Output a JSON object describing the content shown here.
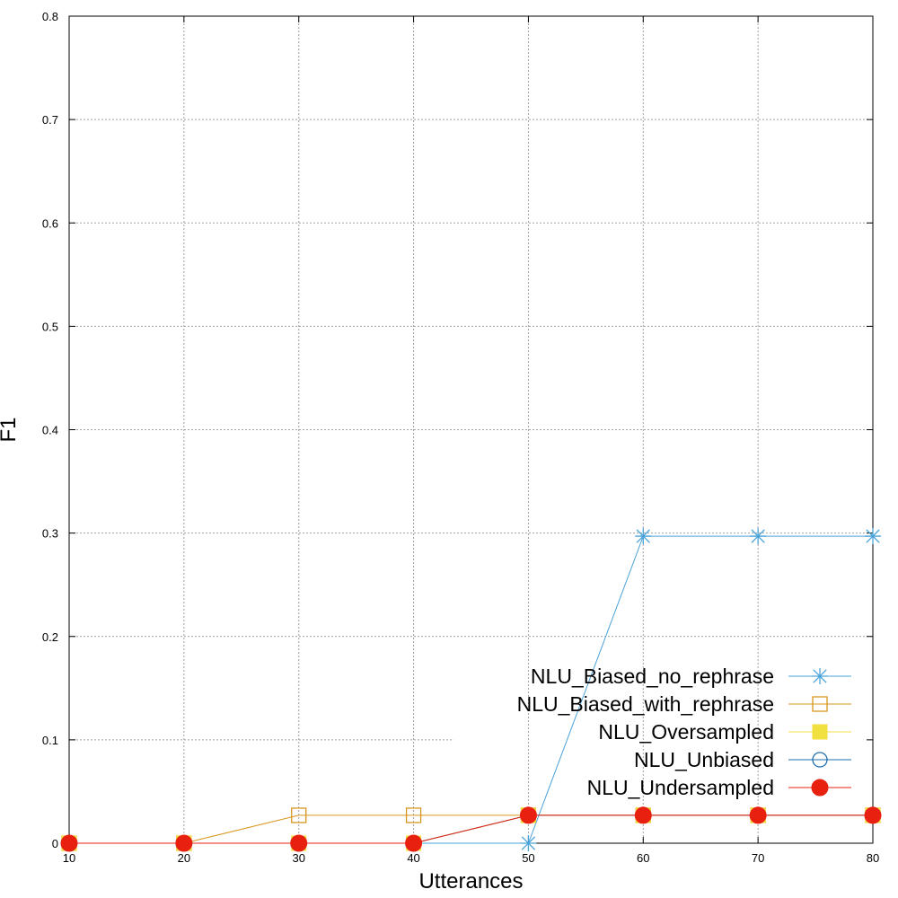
{
  "chart_data": {
    "type": "line",
    "title": "",
    "xlabel": "Utterances",
    "ylabel": "F1",
    "xlim": [
      10,
      80
    ],
    "ylim": [
      0,
      0.8
    ],
    "x": [
      10,
      20,
      30,
      40,
      50,
      60,
      70,
      80
    ],
    "x_ticks": [
      "10",
      "20",
      "30",
      "40",
      "50",
      "60",
      "70",
      "80"
    ],
    "y_ticks": [
      "0",
      "0.1",
      "0.2",
      "0.3",
      "0.4",
      "0.5",
      "0.6",
      "0.7",
      "0.8"
    ],
    "grid": true,
    "legend_position": "bottom-right",
    "series": [
      {
        "name": "NLU_Biased_no_rephrase",
        "color": "#4aa3d8",
        "marker": "star",
        "values": [
          0,
          0,
          0,
          0,
          0,
          0.297,
          0.297,
          0.297
        ]
      },
      {
        "name": "NLU_Biased_with_rephrase",
        "color": "#d8961e",
        "marker": "open-square",
        "values": [
          0,
          0,
          0.027,
          0.027,
          0.027,
          0.027,
          0.027,
          0.027
        ]
      },
      {
        "name": "NLU_Oversampled",
        "color": "#f0e040",
        "marker": "filled-square",
        "values": [
          0,
          0,
          0,
          0,
          0.027,
          0.027,
          0.027,
          0.027
        ]
      },
      {
        "name": "NLU_Unbiased",
        "color": "#1f6fb0",
        "marker": "open-circle",
        "values": [
          0,
          0,
          0,
          0,
          0.027,
          0.027,
          0.027,
          0.027
        ]
      },
      {
        "name": "NLU_Undersampled",
        "color": "#e82010",
        "marker": "filled-circle",
        "values": [
          0,
          0,
          0,
          0,
          0.027,
          0.027,
          0.027,
          0.027
        ]
      }
    ]
  }
}
